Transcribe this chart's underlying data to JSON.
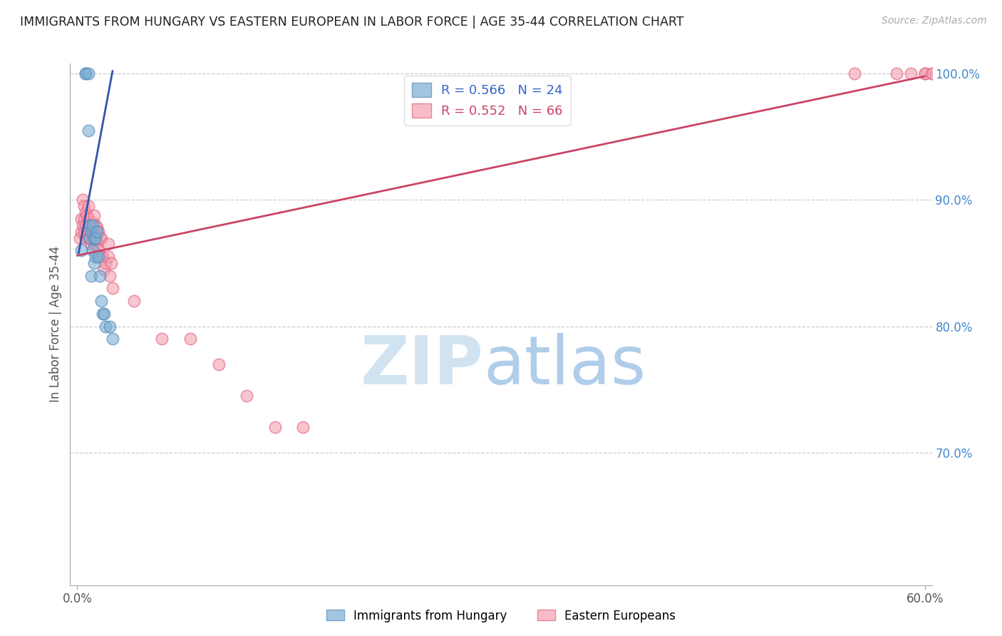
{
  "title": "IMMIGRANTS FROM HUNGARY VS EASTERN EUROPEAN IN LABOR FORCE | AGE 35-44 CORRELATION CHART",
  "source": "Source: ZipAtlas.com",
  "ylabel": "In Labor Force | Age 35-44",
  "xlim": [
    -0.005,
    0.605
  ],
  "ylim": [
    0.595,
    1.008
  ],
  "xticks": [
    0.0,
    0.6
  ],
  "xticklabels": [
    "0.0%",
    "60.0%"
  ],
  "yticks_right": [
    0.7,
    0.8,
    0.9,
    1.0
  ],
  "yticklabels_right": [
    "70.0%",
    "80.0%",
    "90.0%",
    "100.0%"
  ],
  "blue_R": 0.566,
  "blue_N": 24,
  "pink_R": 0.552,
  "pink_N": 66,
  "blue_color": "#7bafd4",
  "pink_color": "#f4a0b0",
  "blue_edge_color": "#5588bb",
  "pink_edge_color": "#e06080",
  "blue_line_color": "#3355aa",
  "pink_line_color": "#cc4466",
  "blue_legend_color": "#3366cc",
  "pink_legend_color": "#cc4466",
  "watermark_zip_color": "#cce0f0",
  "watermark_atlas_color": "#a8c8e8",
  "blue_x": [
    0.003,
    0.006,
    0.006,
    0.008,
    0.008,
    0.009,
    0.009,
    0.01,
    0.01,
    0.011,
    0.011,
    0.012,
    0.012,
    0.013,
    0.013,
    0.014,
    0.015,
    0.016,
    0.017,
    0.018,
    0.019,
    0.02,
    0.023,
    0.025
  ],
  "blue_y": [
    0.86,
    1.0,
    1.0,
    0.955,
    1.0,
    0.87,
    0.88,
    0.84,
    0.875,
    0.86,
    0.88,
    0.85,
    0.87,
    0.855,
    0.87,
    0.875,
    0.855,
    0.84,
    0.82,
    0.81,
    0.81,
    0.8,
    0.8,
    0.79
  ],
  "pink_x": [
    0.002,
    0.003,
    0.003,
    0.004,
    0.004,
    0.005,
    0.005,
    0.005,
    0.006,
    0.006,
    0.006,
    0.007,
    0.007,
    0.008,
    0.008,
    0.008,
    0.008,
    0.009,
    0.009,
    0.01,
    0.01,
    0.011,
    0.011,
    0.012,
    0.012,
    0.012,
    0.013,
    0.013,
    0.014,
    0.014,
    0.015,
    0.015,
    0.016,
    0.017,
    0.017,
    0.018,
    0.019,
    0.02,
    0.022,
    0.022,
    0.023,
    0.024,
    0.025,
    0.04,
    0.06,
    0.08,
    0.1,
    0.12,
    0.14,
    0.16,
    0.55,
    0.58,
    0.59,
    0.6,
    0.6,
    0.605,
    0.605,
    0.61,
    0.62,
    0.625,
    0.63,
    0.64,
    0.65,
    0.655,
    0.66,
    0.67
  ],
  "pink_y": [
    0.87,
    0.875,
    0.885,
    0.88,
    0.9,
    0.875,
    0.885,
    0.895,
    0.87,
    0.88,
    0.89,
    0.875,
    0.888,
    0.87,
    0.878,
    0.885,
    0.895,
    0.87,
    0.88,
    0.865,
    0.878,
    0.87,
    0.882,
    0.865,
    0.875,
    0.888,
    0.87,
    0.88,
    0.865,
    0.878,
    0.86,
    0.875,
    0.87,
    0.855,
    0.87,
    0.855,
    0.845,
    0.85,
    0.855,
    0.865,
    0.84,
    0.85,
    0.83,
    0.82,
    0.79,
    0.79,
    0.77,
    0.745,
    0.72,
    0.72,
    1.0,
    1.0,
    1.0,
    1.0,
    1.0,
    1.0,
    1.0,
    1.0,
    1.0,
    1.0,
    1.0,
    1.0,
    1.0,
    1.0,
    1.0,
    1.0
  ],
  "blue_trendline_x": [
    0.001,
    0.025
  ],
  "blue_trendline_y": [
    0.858,
    1.002
  ],
  "pink_trendline_x": [
    0.0,
    0.6
  ],
  "pink_trendline_y": [
    0.856,
    0.998
  ]
}
